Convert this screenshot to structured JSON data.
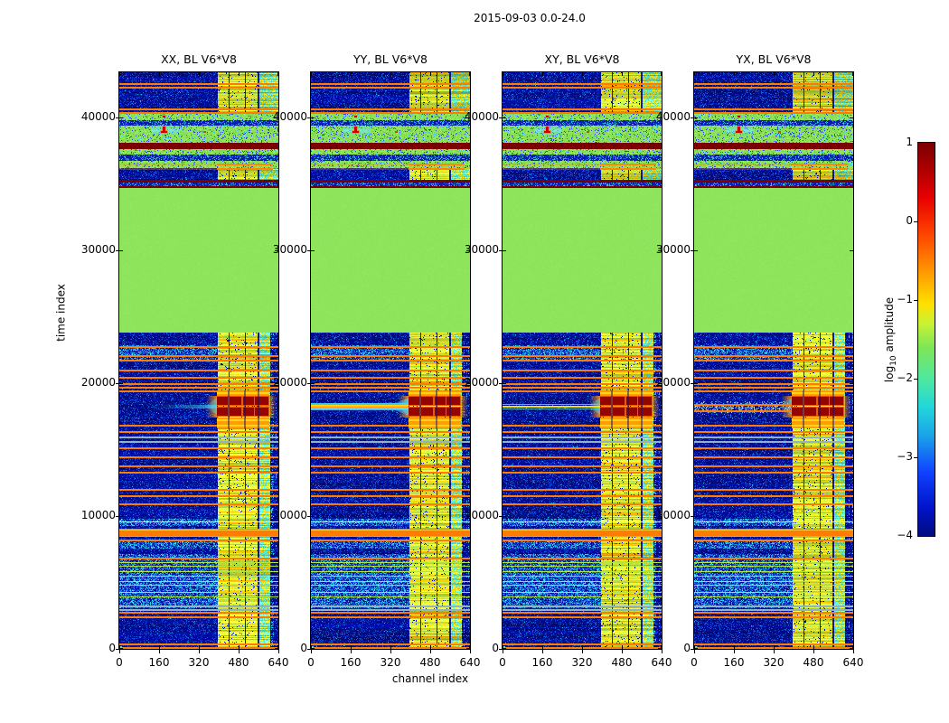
{
  "figure": {
    "title": "2015-09-03 0.0-24.0"
  },
  "chart_data": {
    "type": "heatmap",
    "title": "2015-09-03 0.0-24.0",
    "xlabel": "channel index",
    "ylabel": "time index",
    "xlim": [
      0,
      640
    ],
    "ylim": [
      0,
      43400
    ],
    "xticks": [
      0,
      160,
      320,
      480,
      640
    ],
    "yticks": [
      0,
      10000,
      20000,
      30000,
      40000
    ],
    "xtick_labels": [
      "0",
      "160",
      "320",
      "480",
      "640"
    ],
    "ytick_labels": [
      "0",
      "10000",
      "20000",
      "30000",
      "40000"
    ],
    "colormap": "jet",
    "panels": [
      {
        "label": "XX, BL V6*V8",
        "pol": "XX",
        "streak": "fade"
      },
      {
        "label": "YY, BL V6*V8",
        "pol": "YY",
        "streak": "strong"
      },
      {
        "label": "XY, BL V6*V8",
        "pol": "XY",
        "streak": "thin"
      },
      {
        "label": "YX, BL V6*V8",
        "pol": "YX",
        "streak": "speckle"
      }
    ],
    "colorbar": {
      "label_pre": "log",
      "label_sub": "10",
      "label_post": " amplitude",
      "vmin": -4,
      "vmax": 1,
      "ticks": [
        1,
        0,
        -1,
        -2,
        -3,
        -4
      ],
      "tick_labels": [
        "1",
        "0",
        "−1",
        "−2",
        "−3",
        "−4"
      ],
      "dash_values": [
        0,
        -1,
        -2,
        -3
      ]
    },
    "features": {
      "flat_band": {
        "t0": 23810,
        "t1": 34700
      },
      "rfi": {
        "ch0": 393,
        "ch1": 604,
        "top_ch1": 640,
        "cyan_col_from": 562,
        "gaps": [
          [
            437,
            443
          ],
          [
            502,
            508
          ],
          [
            556,
            562
          ]
        ]
      },
      "tex_bands": [
        [
          3100,
          7200
        ],
        [
          7600,
          8250
        ],
        [
          9300,
          9800
        ],
        [
          21800,
          22900
        ]
      ],
      "top_bands": [
        [
          34700,
          34860,
          "maroon"
        ],
        [
          34860,
          35150,
          "bluetex"
        ],
        [
          35150,
          35330,
          "maroon"
        ],
        [
          35330,
          36190,
          "bluenoise"
        ],
        [
          36190,
          36560,
          "greenseg"
        ],
        [
          36560,
          36740,
          "greentex"
        ],
        [
          36740,
          37210,
          "bluetex"
        ],
        [
          37210,
          37620,
          "greentex"
        ],
        [
          37620,
          38100,
          "maroon"
        ],
        [
          38100,
          39390,
          "greentex"
        ],
        [
          39390,
          39800,
          "bluetex"
        ],
        [
          39800,
          40340,
          "greentex"
        ],
        [
          40340,
          43400,
          "bluenoise"
        ]
      ],
      "seg_rows_t": [
        36500,
        36220
      ],
      "lines": {
        "orange": [
          42560,
          42330,
          40680,
          40410,
          22790,
          22110,
          21770,
          21020,
          20480,
          20000,
          19730,
          19460,
          16870,
          16390,
          15170,
          14490,
          13810,
          13330,
          12040,
          11570,
          10950,
          8230,
          6870,
          2790,
          2450,
          410,
          140
        ],
        "gray": [
          15990,
          15650,
          3270,
          2990
        ],
        "green": [
          6530,
          6260,
          5850,
          5510,
          5100,
          4830,
          4290,
          3950
        ],
        "pale": [
          9590
        ],
        "cyan": [
          8560
        ],
        "thick": [
          9070,
          8800
        ]
      },
      "blob": {
        "ch0": 393,
        "ch1": 604,
        "rows": [
          [
            18280,
            19050
          ],
          [
            17480,
            18200
          ]
        ],
        "blocks": [
          [
            393,
            437
          ],
          [
            443,
            492
          ],
          [
            497,
            540
          ],
          [
            545,
            600
          ]
        ],
        "halo": [
          [
            19050,
            19460
          ],
          [
            16600,
            17420
          ]
        ],
        "gaps": [
          [
            437,
            443
          ],
          [
            502,
            508
          ],
          [
            556,
            562
          ]
        ]
      },
      "streak_t": 18250,
      "yx_streak_lines_t": [
        18420,
        17960
      ],
      "arrow": {
        "ch": 178,
        "bar_t": [
          38980,
          39350
        ],
        "head_t": [
          38830,
          38980
        ],
        "dot_t": [
          40050,
          40200
        ],
        "dot2_ch": 340,
        "dot2_t": [
          38850,
          38950
        ],
        "band_t": [
          38730,
          39320
        ],
        "band_ch": [
          128,
          238
        ]
      }
    }
  },
  "colors": {
    "navy": "#000d96",
    "blue_specks": [
      "#0019b4",
      "#0b2fd2",
      "#1248e2",
      "#0b62da"
    ],
    "cyan_speck": "#1ab8e4",
    "tex_cyans": [
      "#1693dc",
      "#2ab4e8",
      "#0b5ce0",
      "#49cdf0"
    ],
    "flat_green": "#8ee55c",
    "green_dot_blue": "#2b46d4",
    "green_dot_cyan": "#38c8e8",
    "stripe_yellows": [
      "#ffe414",
      "#f2e628",
      "#dcea3a",
      "#c3e948",
      "#aae653"
    ],
    "stripe_cyan": "#52d8c0",
    "stripe_orange": "#ffb000",
    "stripe_gap": "#0a1e9c",
    "maroon": "#7e0000",
    "bluetex": "#0a1cb0",
    "bluetex_cyans": [
      "#2fb4e4",
      "#59d4f0",
      "#1b78d8"
    ],
    "line_orange": "#ff7c00",
    "line_gray": "#95b2c0",
    "line_green": "#b6e63c",
    "line_pale": "#eef2cc",
    "line_cyan": "#44d4f2",
    "thick_core": "#ffc83c",
    "seg_orange": "#ff8800",
    "blob_red": "#940400",
    "blob_orange": "#e85c00",
    "blob_halo": "#ff9d00",
    "blob_yellow": "#ffd21e",
    "streak_yellow": "#ffd400",
    "streak_orange": "#ff8c00",
    "arrow_red": "#cf0000",
    "arrow_halo": "#ff9800",
    "corner_green": "#76e84c",
    "axis": "#000000"
  }
}
